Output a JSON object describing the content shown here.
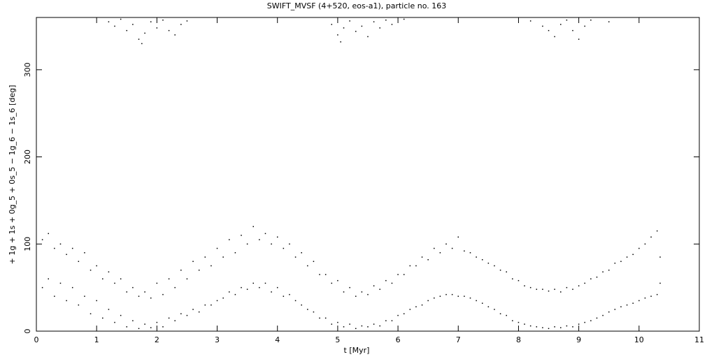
{
  "chart_data": {
    "type": "scatter",
    "title": "SWIFT_MVSF (4+520, eos-a1), particle no. 163",
    "xlabel": "t [Myr]",
    "ylabel": "+ 1g + 1s + 0g_5 + 0s_5 − 1g_6 − 1s_6 [deg]",
    "color": "#000000",
    "xlim": [
      0,
      11
    ],
    "xticks": [
      0,
      1,
      2,
      3,
      4,
      5,
      6,
      7,
      8,
      9,
      10,
      11
    ],
    "ylim": [
      0,
      360
    ],
    "yticks": [
      0,
      100,
      200,
      300
    ],
    "x": [
      0.1,
      0.1,
      0.2,
      0.2,
      0.3,
      0.3,
      0.4,
      0.4,
      0.5,
      0.5,
      0.6,
      0.6,
      0.7,
      0.7,
      0.8,
      0.8,
      0.9,
      0.9,
      1.0,
      1.0,
      1.1,
      1.1,
      1.2,
      1.2,
      1.3,
      1.3,
      1.4,
      1.4,
      1.5,
      1.5,
      1.6,
      1.6,
      1.7,
      1.7,
      1.8,
      1.8,
      1.9,
      1.9,
      2.0,
      2.0,
      2.1,
      2.1,
      2.2,
      2.2,
      2.3,
      2.3,
      2.4,
      2.4,
      2.5,
      2.5,
      2.6,
      2.6,
      2.7,
      2.7,
      2.8,
      2.8,
      2.9,
      2.9,
      3.0,
      3.0,
      3.1,
      3.1,
      3.2,
      3.2,
      3.3,
      3.3,
      3.4,
      3.4,
      3.5,
      3.5,
      3.6,
      3.6,
      3.7,
      3.7,
      3.8,
      3.8,
      3.9,
      3.9,
      4.0,
      4.0,
      4.1,
      4.1,
      4.2,
      4.2,
      4.3,
      4.3,
      4.4,
      4.4,
      4.5,
      4.5,
      4.6,
      4.6,
      4.7,
      4.7,
      4.8,
      4.8,
      4.9,
      4.9,
      5.0,
      5.0,
      5.1,
      5.1,
      5.2,
      5.2,
      5.3,
      5.3,
      5.4,
      5.4,
      5.5,
      5.5,
      5.6,
      5.6,
      5.7,
      5.7,
      5.8,
      5.8,
      5.9,
      5.9,
      6.0,
      6.0,
      6.1,
      6.1,
      6.2,
      6.2,
      6.3,
      6.3,
      6.4,
      6.4,
      6.5,
      6.5,
      6.6,
      6.6,
      6.7,
      6.7,
      6.8,
      6.8,
      6.9,
      6.9,
      7.0,
      7.0,
      7.1,
      7.1,
      7.2,
      7.2,
      7.3,
      7.3,
      7.4,
      7.4,
      7.5,
      7.5,
      7.6,
      7.6,
      7.7,
      7.7,
      7.8,
      7.8,
      7.9,
      7.9,
      8.0,
      8.0,
      8.1,
      8.1,
      8.2,
      8.2,
      8.3,
      8.3,
      8.4,
      8.4,
      8.5,
      8.5,
      8.6,
      8.6,
      8.7,
      8.7,
      8.8,
      8.8,
      8.9,
      8.9,
      9.0,
      9.0,
      9.1,
      9.1,
      9.2,
      9.2,
      9.3,
      9.3,
      9.4,
      9.4,
      9.5,
      9.5,
      9.6,
      9.6,
      9.7,
      9.7,
      9.8,
      9.8,
      9.9,
      9.9,
      10.0,
      10.0,
      10.1,
      10.1,
      10.2,
      10.2,
      10.3,
      10.3,
      10.35,
      10.35,
      1.2,
      1.3,
      1.4,
      1.5,
      1.6,
      1.7,
      1.75,
      1.8,
      1.9,
      2.0,
      2.1,
      2.2,
      2.3,
      2.4,
      2.5,
      4.9,
      5.0,
      5.05,
      5.1,
      5.2,
      5.3,
      5.4,
      5.5,
      5.6,
      5.7,
      5.8,
      5.9,
      6.1,
      8.2,
      8.4,
      8.5,
      8.6,
      8.7,
      8.8,
      8.9,
      9.0,
      9.1,
      9.2,
      9.5
    ],
    "values": [
      105,
      50,
      60,
      112,
      95,
      40,
      55,
      100,
      88,
      35,
      50,
      95,
      80,
      30,
      40,
      90,
      70,
      20,
      35,
      75,
      60,
      15,
      25,
      68,
      55,
      10,
      18,
      60,
      45,
      5,
      12,
      50,
      40,
      3,
      8,
      45,
      38,
      4,
      10,
      55,
      42,
      5,
      15,
      60,
      50,
      12,
      20,
      70,
      60,
      18,
      25,
      80,
      70,
      22,
      30,
      85,
      75,
      30,
      35,
      95,
      85,
      38,
      45,
      105,
      90,
      42,
      50,
      110,
      100,
      48,
      55,
      120,
      105,
      50,
      55,
      112,
      100,
      45,
      50,
      108,
      95,
      40,
      42,
      100,
      85,
      35,
      30,
      90,
      75,
      25,
      22,
      80,
      65,
      15,
      15,
      65,
      55,
      8,
      10,
      58,
      45,
      5,
      8,
      50,
      40,
      3,
      6,
      45,
      42,
      5,
      8,
      52,
      48,
      6,
      12,
      58,
      55,
      12,
      18,
      65,
      65,
      20,
      25,
      75,
      75,
      28,
      30,
      85,
      82,
      35,
      38,
      95,
      90,
      40,
      42,
      100,
      95,
      42,
      40,
      108,
      92,
      40,
      38,
      90,
      85,
      35,
      32,
      82,
      78,
      28,
      25,
      75,
      70,
      20,
      18,
      68,
      60,
      12,
      10,
      58,
      52,
      8,
      6,
      50,
      48,
      5,
      4,
      48,
      46,
      3,
      5,
      48,
      45,
      4,
      6,
      50,
      48,
      5,
      8,
      52,
      55,
      10,
      12,
      60,
      62,
      15,
      18,
      68,
      70,
      22,
      25,
      78,
      80,
      28,
      30,
      85,
      88,
      32,
      35,
      95,
      100,
      38,
      40,
      108,
      115,
      42,
      55,
      85,
      355,
      350,
      358,
      345,
      352,
      335,
      330,
      342,
      355,
      348,
      357,
      345,
      340,
      352,
      356,
      352,
      340,
      332,
      348,
      356,
      344,
      350,
      338,
      355,
      348,
      357,
      352,
      358,
      356,
      350,
      345,
      338,
      352,
      357,
      345,
      335,
      350,
      357,
      355
    ]
  }
}
